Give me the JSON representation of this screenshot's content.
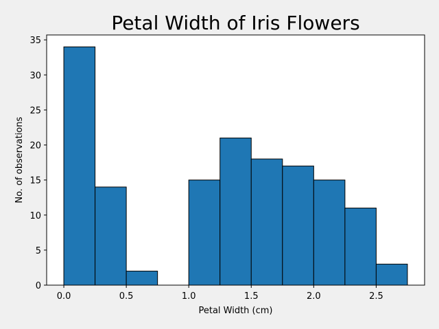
{
  "chart_data": {
    "type": "bar",
    "title": "Petal Width of Iris Flowers",
    "xlabel": "Petal Width (cm)",
    "ylabel": "No. of observations",
    "bin_edges": [
      0.0,
      0.25,
      0.5,
      0.75,
      1.0,
      1.25,
      1.5,
      1.75,
      2.0,
      2.25,
      2.5,
      2.75
    ],
    "values": [
      34,
      14,
      2,
      0,
      15,
      21,
      18,
      17,
      15,
      11,
      3
    ],
    "xlim": [
      -0.1375,
      2.8875
    ],
    "ylim": [
      0,
      35.7
    ],
    "xticks": [
      0.0,
      0.5,
      1.0,
      1.5,
      2.0,
      2.5
    ],
    "xtick_labels": [
      "0.0",
      "0.5",
      "1.0",
      "1.5",
      "2.0",
      "2.5"
    ],
    "yticks": [
      0,
      5,
      10,
      15,
      20,
      25,
      30,
      35
    ],
    "ytick_labels": [
      "0",
      "5",
      "10",
      "15",
      "20",
      "25",
      "30",
      "35"
    ],
    "grid": false,
    "colors": {
      "bar": "#1f77b4",
      "edge": "#000000",
      "figure_bg": "#f0f0f0",
      "axes_bg": "#ffffff"
    }
  }
}
